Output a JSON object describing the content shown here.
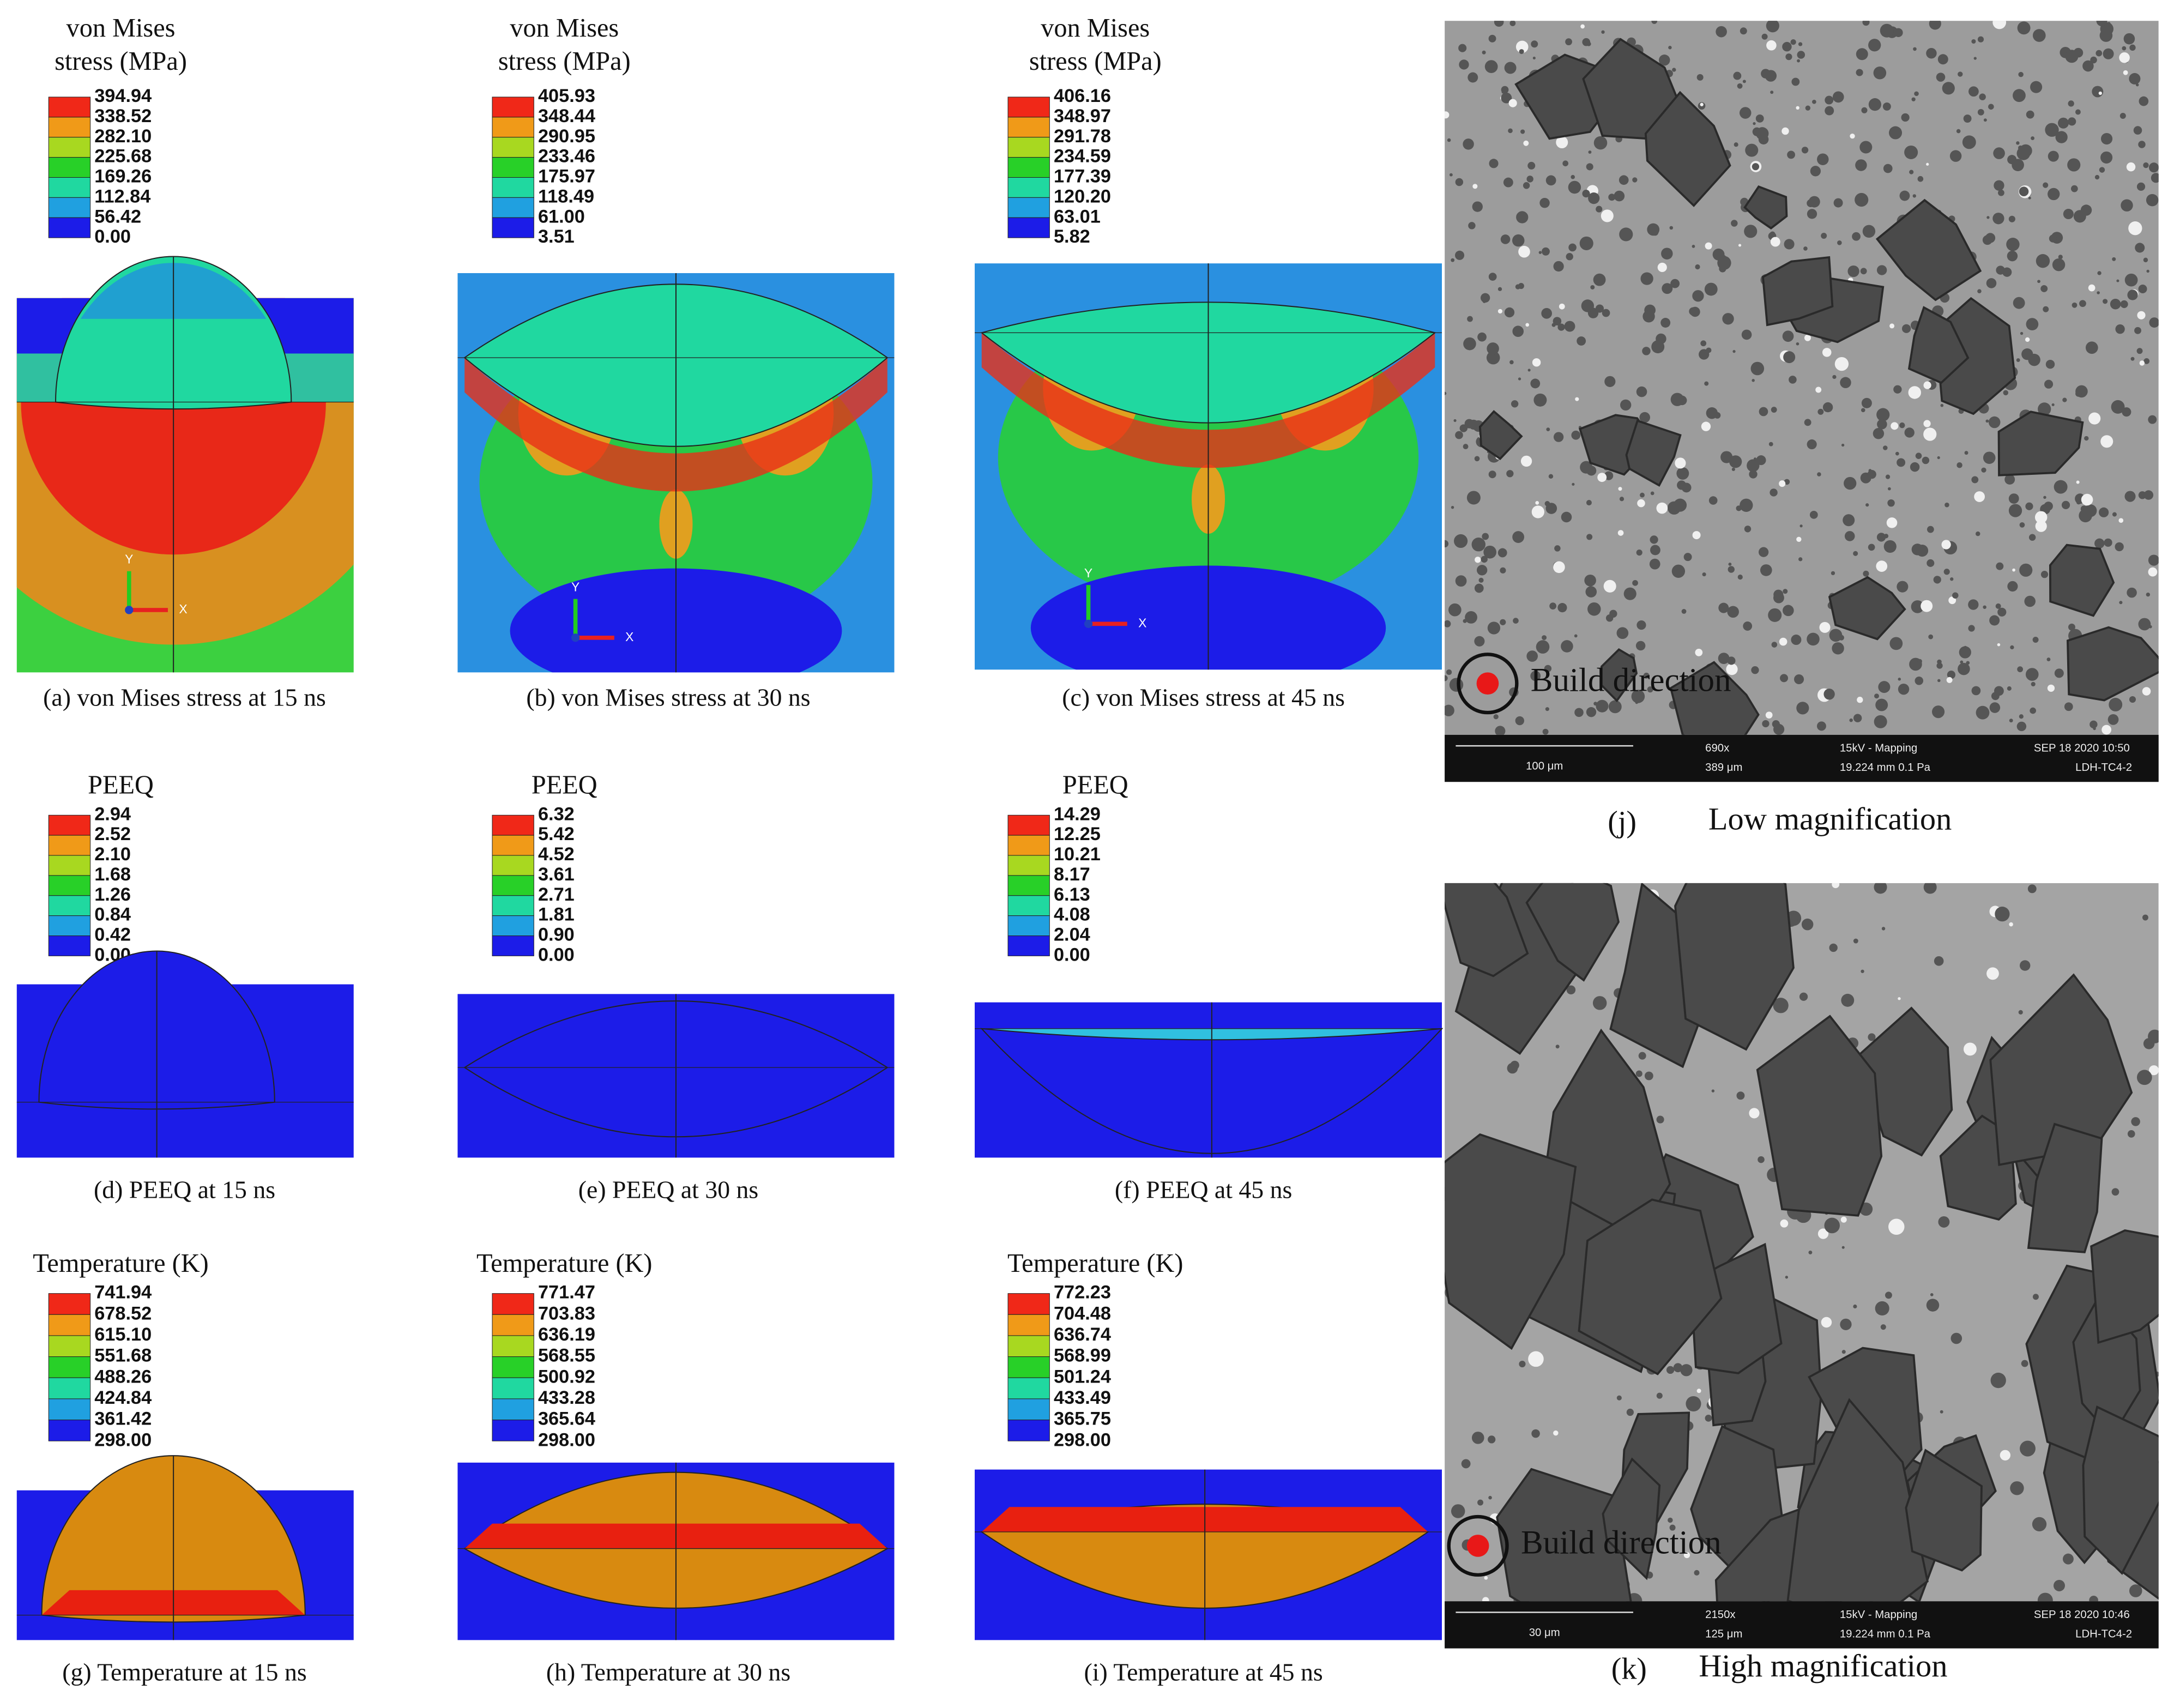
{
  "panels": [
    {
      "legend_title": [
        "von Mises",
        "stress (MPa)"
      ],
      "legend_values": [
        "394.94",
        "338.52",
        "282.10",
        "225.68",
        "169.26",
        "112.84",
        "56.42",
        "0.00"
      ],
      "triad": {
        "x": "X",
        "y": "Y"
      },
      "caption": "(a) von Mises stress at 15 ns"
    },
    {
      "legend_title": [
        "von Mises",
        "stress (MPa)"
      ],
      "legend_values": [
        "405.93",
        "348.44",
        "290.95",
        "233.46",
        "175.97",
        "118.49",
        "61.00",
        "3.51"
      ],
      "triad": {
        "x": "X",
        "y": "Y"
      },
      "caption": "(b) von Mises stress at 30 ns"
    },
    {
      "legend_title": [
        "von Mises",
        "stress (MPa)"
      ],
      "legend_values": [
        "406.16",
        "348.97",
        "291.78",
        "234.59",
        "177.39",
        "120.20",
        "63.01",
        "5.82"
      ],
      "triad": {
        "x": "X",
        "y": "Y"
      },
      "caption": "(c) von Mises stress at 45 ns"
    },
    {
      "legend_title": [
        "PEEQ"
      ],
      "legend_values": [
        "2.94",
        "2.52",
        "2.10",
        "1.68",
        "1.26",
        "0.84",
        "0.42",
        "0.00"
      ],
      "caption": "(d) PEEQ at 15 ns"
    },
    {
      "legend_title": [
        "PEEQ"
      ],
      "legend_values": [
        "6.32",
        "5.42",
        "4.52",
        "3.61",
        "2.71",
        "1.81",
        "0.90",
        "0.00"
      ],
      "caption": "(e) PEEQ at 30 ns"
    },
    {
      "legend_title": [
        "PEEQ"
      ],
      "legend_values": [
        "14.29",
        "12.25",
        "10.21",
        "8.17",
        "6.13",
        "4.08",
        "2.04",
        "0.00"
      ],
      "caption": "(f) PEEQ at 45 ns"
    },
    {
      "legend_title": [
        "Temperature (K)"
      ],
      "legend_values": [
        "741.94",
        "678.52",
        "615.10",
        "551.68",
        "488.26",
        "424.84",
        "361.42",
        "298.00"
      ],
      "caption": "(g) Temperature at 15 ns"
    },
    {
      "legend_title": [
        "Temperature (K)"
      ],
      "legend_values": [
        "771.47",
        "703.83",
        "636.19",
        "568.55",
        "500.92",
        "433.28",
        "365.64",
        "298.00"
      ],
      "caption": "(h) Temperature at 30 ns"
    },
    {
      "legend_title": [
        "Temperature (K)"
      ],
      "legend_values": [
        "772.23",
        "704.48",
        "636.74",
        "568.99",
        "501.24",
        "433.49",
        "365.75",
        "298.00"
      ],
      "caption": "(i) Temperature at 45 ns"
    }
  ],
  "sem": [
    {
      "label": "(j)",
      "caption": "Low magnification",
      "marker": "Build direction",
      "bar": {
        "scale": "100 μm",
        "mag": "690x",
        "hfw": "389 μm",
        "mode": "15kV - Mapping",
        "wd": "19.224 mm  0.1 Pa",
        "date": "SEP 18 2020 10:50",
        "id": "LDH-TC4-2"
      }
    },
    {
      "label": "(k)",
      "caption": "High magnification",
      "marker": "Build direction",
      "bar": {
        "scale": "30 μm",
        "mag": "2150x",
        "hfw": "125 μm",
        "mode": "15kV - Mapping",
        "wd": "19.224 mm  0.1 Pa",
        "date": "SEP 18 2020 10:46",
        "id": "LDH-TC4-2"
      }
    }
  ]
}
